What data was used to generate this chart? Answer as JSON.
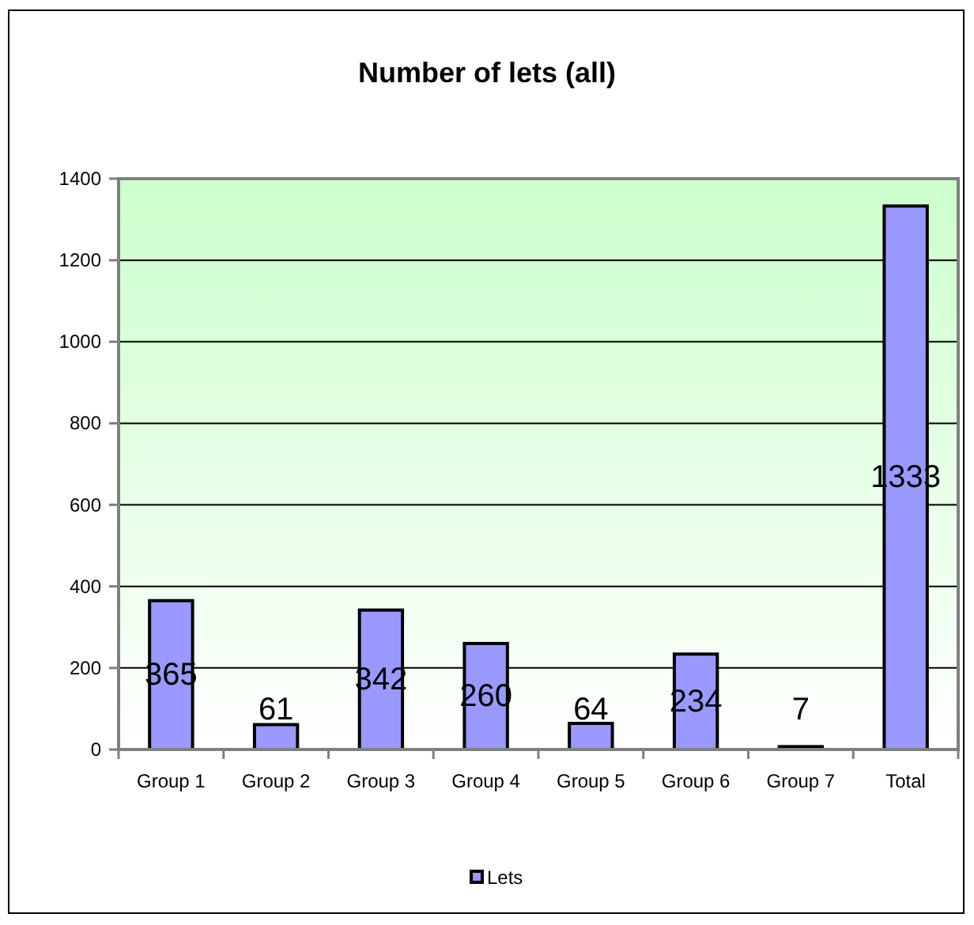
{
  "chart_data": {
    "type": "bar",
    "title": "Number of lets (all)",
    "categories": [
      "Group 1",
      "Group 2",
      "Group 3",
      "Group 4",
      "Group 5",
      "Group 6",
      "Group 7",
      "Total"
    ],
    "series": [
      {
        "name": "Lets",
        "color": "#9999ff",
        "values": [
          365,
          61,
          342,
          260,
          64,
          234,
          7,
          1333
        ]
      }
    ],
    "ylim": [
      0,
      1400
    ],
    "yticks": [
      0,
      200,
      400,
      600,
      800,
      1000,
      1200,
      1400
    ],
    "grid": "y",
    "legend": "bottom",
    "data_labels": true
  }
}
